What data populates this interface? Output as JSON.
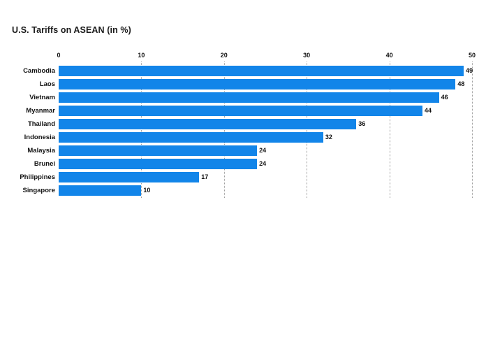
{
  "title": "U.S. Tariffs on ASEAN (in %)",
  "colors": {
    "bar": "#1285e9",
    "grid": "#9e9e9e",
    "text": "#111111",
    "background": "#ffffff"
  },
  "chart_data": {
    "type": "bar",
    "orientation": "horizontal",
    "title": "U.S. Tariffs on ASEAN (in %)",
    "categories": [
      "Cambodia",
      "Laos",
      "Vietnam",
      "Myanmar",
      "Thailand",
      "Indonesia",
      "Malaysia",
      "Brunei",
      "Philippines",
      "Singapore"
    ],
    "values": [
      49,
      48,
      46,
      44,
      36,
      32,
      24,
      24,
      17,
      10
    ],
    "xlabel": "",
    "ylabel": "",
    "xlim": [
      0,
      50
    ],
    "x_ticks": [
      0,
      10,
      20,
      30,
      40,
      50
    ],
    "grid": "vertical-dotted",
    "value_labels_shown": true,
    "legend": "none"
  }
}
